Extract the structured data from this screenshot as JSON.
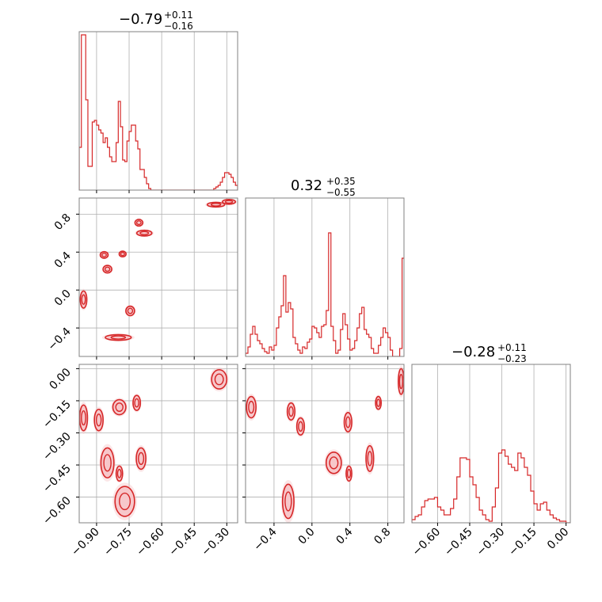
{
  "colors": {
    "accent": "#d62728",
    "fill_light": "#f7c7ca",
    "grid": "#b0b0b0",
    "frame": "#808080"
  },
  "chart_data": {
    "type": "corner",
    "grid": true,
    "parameters": [
      {
        "median": "−0.79",
        "plus": "+0.11",
        "minus": "−0.16",
        "range": [
          -0.98,
          -0.25
        ]
      },
      {
        "median": "0.32",
        "plus": "+0.35",
        "minus": "−0.55",
        "range": [
          -0.7,
          0.97
        ]
      },
      {
        "median": "−0.28",
        "plus": "+0.11",
        "minus": "−0.23",
        "range": [
          -0.72,
          0.02
        ]
      }
    ],
    "ticks": {
      "p1": [
        -0.9,
        -0.75,
        -0.6,
        -0.45,
        -0.3
      ],
      "p1_labels": [
        "−0.90",
        "−0.75",
        "−0.60",
        "−0.45",
        "−0.30"
      ],
      "p2": [
        -0.4,
        0.0,
        0.4,
        0.8
      ],
      "p2_labels": [
        "−0.4",
        "0.0",
        "0.4",
        "0.8"
      ],
      "p3": [
        -0.6,
        -0.45,
        -0.3,
        -0.15,
        0.0
      ],
      "p3_labels": [
        "−0.60",
        "−0.45",
        "−0.30",
        "−0.15",
        "0.00"
      ]
    },
    "hist_p1": {
      "x": [
        -0.98,
        -0.97,
        -0.96,
        -0.95,
        -0.94,
        -0.93,
        -0.92,
        -0.91,
        -0.9,
        -0.89,
        -0.88,
        -0.87,
        -0.86,
        -0.85,
        -0.84,
        -0.83,
        -0.82,
        -0.81,
        -0.8,
        -0.79,
        -0.78,
        -0.77,
        -0.76,
        -0.75,
        -0.74,
        -0.73,
        -0.72,
        -0.71,
        -0.7,
        -0.69,
        -0.68,
        -0.67,
        -0.66,
        -0.65,
        -0.64,
        -0.63,
        -0.62,
        -0.61,
        -0.6,
        -0.59,
        -0.58,
        -0.57,
        -0.56,
        -0.55,
        -0.54,
        -0.53,
        -0.52,
        -0.51,
        -0.5,
        -0.49,
        -0.48,
        -0.47,
        -0.46,
        -0.45,
        -0.44,
        -0.43,
        -0.42,
        -0.41,
        -0.4,
        -0.39,
        -0.38,
        -0.37,
        -0.36,
        -0.35,
        -0.34,
        -0.33,
        -0.32,
        -0.31,
        -0.3,
        -0.29,
        -0.28,
        -0.27,
        -0.26
      ],
      "values": [
        0.27,
        0.98,
        0.98,
        0.57,
        0.15,
        0.15,
        0.43,
        0.44,
        0.41,
        0.38,
        0.36,
        0.3,
        0.33,
        0.27,
        0.21,
        0.18,
        0.18,
        0.3,
        0.56,
        0.4,
        0.19,
        0.18,
        0.31,
        0.37,
        0.41,
        0.41,
        0.31,
        0.26,
        0.13,
        0.13,
        0.08,
        0.04,
        0.01,
        0.0,
        0.0,
        0.0,
        0.0,
        0.0,
        0.0,
        0.0,
        0.0,
        0.0,
        0.0,
        0.0,
        0.0,
        0.0,
        0.0,
        0.0,
        0.0,
        0.0,
        0.0,
        0.0,
        0.0,
        0.0,
        0.0,
        0.0,
        0.0,
        0.0,
        0.0,
        0.0,
        0.0,
        0.0,
        0.01,
        0.02,
        0.03,
        0.05,
        0.08,
        0.11,
        0.11,
        0.1,
        0.08,
        0.05,
        0.03
      ]
    },
    "hist_p2": {
      "x": [
        -0.7,
        -0.675,
        -0.65,
        -0.625,
        -0.6,
        -0.575,
        -0.55,
        -0.525,
        -0.5,
        -0.475,
        -0.45,
        -0.425,
        -0.4,
        -0.375,
        -0.35,
        -0.325,
        -0.3,
        -0.275,
        -0.25,
        -0.225,
        -0.2,
        -0.175,
        -0.15,
        -0.125,
        -0.1,
        -0.075,
        -0.05,
        -0.025,
        0.0,
        0.025,
        0.05,
        0.075,
        0.1,
        0.125,
        0.15,
        0.175,
        0.2,
        0.225,
        0.25,
        0.275,
        0.3,
        0.325,
        0.35,
        0.375,
        0.4,
        0.425,
        0.45,
        0.475,
        0.5,
        0.525,
        0.55,
        0.575,
        0.6,
        0.625,
        0.65,
        0.675,
        0.7,
        0.725,
        0.75,
        0.775,
        0.8,
        0.825,
        0.85,
        0.875,
        0.9,
        0.925,
        0.95
      ],
      "values": [
        0.02,
        0.06,
        0.14,
        0.19,
        0.14,
        0.1,
        0.08,
        0.05,
        0.03,
        0.02,
        0.06,
        0.04,
        0.07,
        0.18,
        0.25,
        0.32,
        0.51,
        0.28,
        0.34,
        0.3,
        0.12,
        0.08,
        0.04,
        0.02,
        0.06,
        0.05,
        0.09,
        0.11,
        0.19,
        0.18,
        0.15,
        0.12,
        0.19,
        0.2,
        0.29,
        0.78,
        0.19,
        0.1,
        0.02,
        0.04,
        0.17,
        0.27,
        0.2,
        0.11,
        0.04,
        0.05,
        0.1,
        0.18,
        0.27,
        0.31,
        0.17,
        0.14,
        0.12,
        0.05,
        0.02,
        0.02,
        0.07,
        0.12,
        0.18,
        0.15,
        0.12,
        0.04,
        0.0,
        0.0,
        0.0,
        0.05,
        0.62
      ]
    },
    "hist_p3": {
      "x": [
        -0.72,
        -0.705,
        -0.69,
        -0.675,
        -0.66,
        -0.645,
        -0.63,
        -0.615,
        -0.6,
        -0.585,
        -0.57,
        -0.555,
        -0.54,
        -0.525,
        -0.51,
        -0.495,
        -0.48,
        -0.465,
        -0.45,
        -0.435,
        -0.42,
        -0.405,
        -0.39,
        -0.375,
        -0.36,
        -0.345,
        -0.33,
        -0.315,
        -0.3,
        -0.285,
        -0.27,
        -0.255,
        -0.24,
        -0.225,
        -0.21,
        -0.195,
        -0.18,
        -0.165,
        -0.15,
        -0.135,
        -0.12,
        -0.105,
        -0.09,
        -0.075,
        -0.06,
        -0.045,
        -0.03,
        -0.015,
        0.0,
        0.015
      ],
      "values": [
        0.02,
        0.04,
        0.05,
        0.1,
        0.14,
        0.15,
        0.15,
        0.16,
        0.1,
        0.08,
        0.05,
        0.05,
        0.09,
        0.15,
        0.29,
        0.41,
        0.41,
        0.4,
        0.29,
        0.24,
        0.16,
        0.08,
        0.05,
        0.02,
        0.01,
        0.1,
        0.22,
        0.44,
        0.46,
        0.42,
        0.37,
        0.35,
        0.33,
        0.44,
        0.41,
        0.35,
        0.3,
        0.2,
        0.12,
        0.08,
        0.12,
        0.13,
        0.08,
        0.05,
        0.03,
        0.02,
        0.01,
        0.01,
        0.0,
        0.0
      ]
    },
    "blobs_p1p2": [
      {
        "x": -0.705,
        "y": 0.71,
        "rx": 0.018,
        "ry": 0.035
      },
      {
        "x": -0.68,
        "y": 0.6,
        "rx": 0.035,
        "ry": 0.03
      },
      {
        "x": -0.865,
        "y": 0.37,
        "rx": 0.018,
        "ry": 0.035
      },
      {
        "x": -0.78,
        "y": 0.38,
        "rx": 0.016,
        "ry": 0.03
      },
      {
        "x": -0.85,
        "y": 0.22,
        "rx": 0.02,
        "ry": 0.04
      },
      {
        "x": -0.96,
        "y": -0.1,
        "rx": 0.015,
        "ry": 0.09
      },
      {
        "x": -0.745,
        "y": -0.22,
        "rx": 0.02,
        "ry": 0.05
      },
      {
        "x": -0.8,
        "y": -0.5,
        "rx": 0.06,
        "ry": 0.03
      },
      {
        "x": -0.35,
        "y": 0.9,
        "rx": 0.04,
        "ry": 0.015
      },
      {
        "x": -0.29,
        "y": 0.93,
        "rx": 0.03,
        "ry": 0.012
      }
    ],
    "blobs_p1p3": [
      {
        "x": -0.715,
        "y": -0.16,
        "rx": 0.017,
        "ry": 0.035
      },
      {
        "x": -0.795,
        "y": -0.18,
        "rx": 0.03,
        "ry": 0.035
      },
      {
        "x": -0.96,
        "y": -0.23,
        "rx": 0.018,
        "ry": 0.06
      },
      {
        "x": -0.89,
        "y": -0.24,
        "rx": 0.02,
        "ry": 0.05
      },
      {
        "x": -0.695,
        "y": -0.42,
        "rx": 0.022,
        "ry": 0.05
      },
      {
        "x": -0.85,
        "y": -0.44,
        "rx": 0.03,
        "ry": 0.07
      },
      {
        "x": -0.795,
        "y": -0.49,
        "rx": 0.015,
        "ry": 0.035
      },
      {
        "x": -0.77,
        "y": -0.62,
        "rx": 0.045,
        "ry": 0.07
      },
      {
        "x": -0.335,
        "y": -0.05,
        "rx": 0.035,
        "ry": 0.045
      }
    ],
    "blobs_p2p3": [
      {
        "x": -0.64,
        "y": -0.18,
        "rx": 0.05,
        "ry": 0.05
      },
      {
        "x": -0.22,
        "y": -0.2,
        "rx": 0.04,
        "ry": 0.04
      },
      {
        "x": -0.12,
        "y": -0.27,
        "rx": 0.04,
        "ry": 0.04
      },
      {
        "x": 0.38,
        "y": -0.25,
        "rx": 0.04,
        "ry": 0.045
      },
      {
        "x": 0.7,
        "y": -0.16,
        "rx": 0.03,
        "ry": 0.03
      },
      {
        "x": 0.94,
        "y": -0.06,
        "rx": 0.03,
        "ry": 0.06
      },
      {
        "x": 0.23,
        "y": -0.44,
        "rx": 0.08,
        "ry": 0.05
      },
      {
        "x": 0.39,
        "y": -0.49,
        "rx": 0.03,
        "ry": 0.035
      },
      {
        "x": 0.61,
        "y": -0.42,
        "rx": 0.04,
        "ry": 0.06
      },
      {
        "x": -0.25,
        "y": -0.62,
        "rx": 0.06,
        "ry": 0.08
      }
    ]
  }
}
